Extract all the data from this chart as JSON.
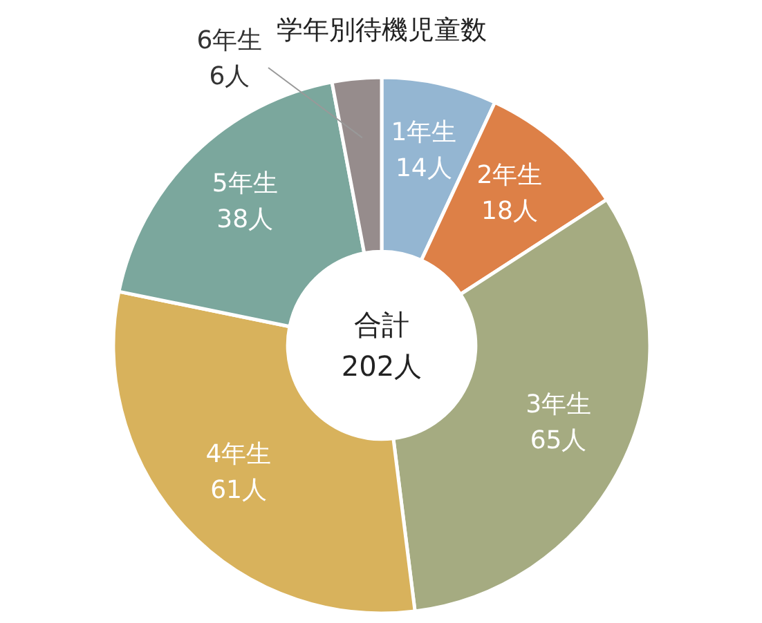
{
  "chart_data": {
    "type": "donut",
    "title": "学年別待機児童数",
    "categories": [
      "1年生",
      "2年生",
      "3年生",
      "4年生",
      "5年生",
      "6年生"
    ],
    "values": [
      14,
      18,
      65,
      61,
      38,
      6
    ],
    "value_labels": [
      "14人",
      "18人",
      "65人",
      "61人",
      "38人",
      "6人"
    ],
    "colors": [
      "#94b6d2",
      "#dd8047",
      "#a5ab81",
      "#d8b25c",
      "#7ba79d",
      "#968c8c"
    ],
    "annotations": [
      "合計",
      "202人"
    ]
  }
}
